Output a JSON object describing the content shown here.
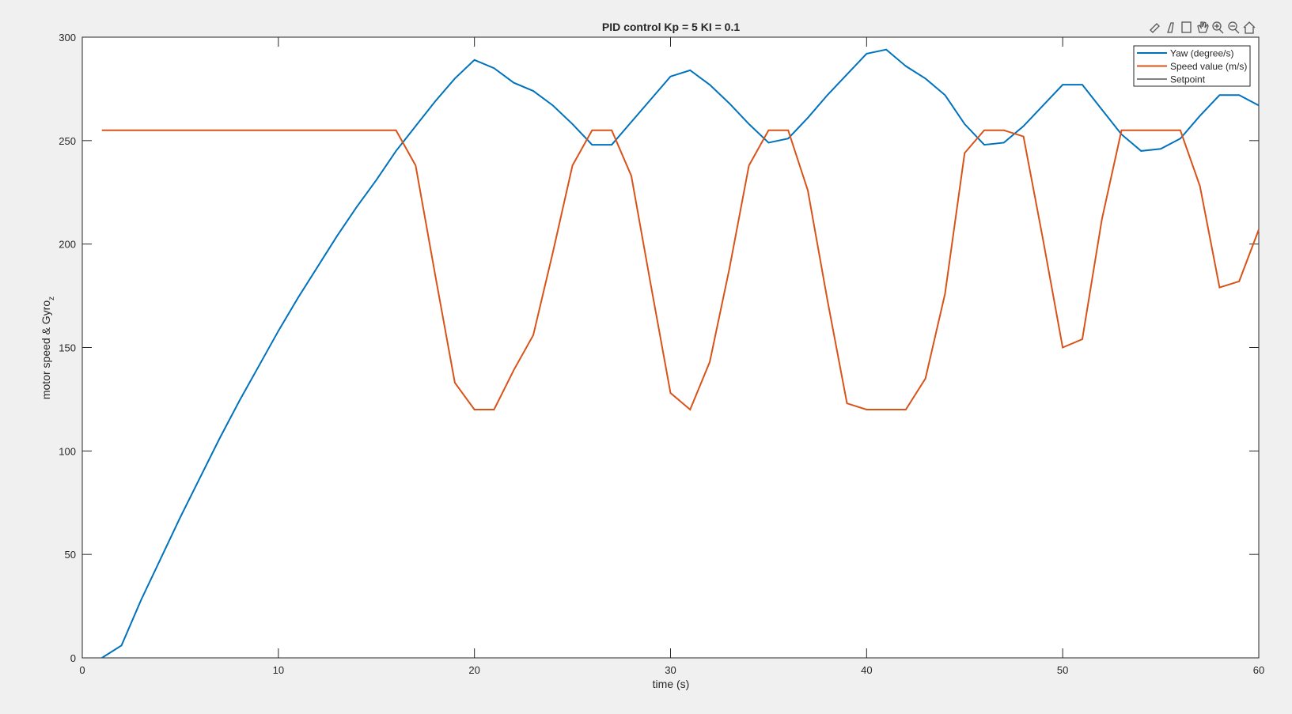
{
  "chart_data": {
    "type": "line",
    "title": "PID control Kp = 5 KI = 0.1",
    "xlabel": "time (s)",
    "ylabel": "motor speed & Gyro",
    "ylabel_subscript": "z",
    "x": [
      1,
      2,
      3,
      4,
      5,
      6,
      7,
      8,
      9,
      10,
      11,
      12,
      13,
      14,
      15,
      16,
      17,
      18,
      19,
      20,
      21,
      22,
      23,
      24,
      25,
      26,
      27,
      28,
      29,
      30,
      31,
      32,
      33,
      34,
      35,
      36,
      37,
      38,
      39,
      40,
      41,
      42,
      43,
      44,
      45,
      46,
      47,
      48,
      49,
      50,
      51,
      52,
      53,
      54,
      55,
      56,
      57,
      58,
      59,
      60
    ],
    "series": [
      {
        "name": "Yaw (degree/s)",
        "color": "#0072bd",
        "values": [
          0,
          6,
          28,
          48,
          68,
          87,
          106,
          124,
          141,
          158,
          174,
          189,
          204,
          218,
          231,
          245,
          257,
          269,
          280,
          289,
          285,
          278,
          274,
          267,
          258,
          248,
          248,
          259,
          270,
          281,
          284,
          277,
          268,
          258,
          249,
          251,
          261,
          272,
          282,
          292,
          294,
          286,
          280,
          272,
          258,
          248,
          249,
          257,
          267,
          277,
          277,
          265,
          253,
          245,
          246,
          251,
          262,
          272,
          272,
          267
        ]
      },
      {
        "name": "Speed value (m/s)",
        "color": "#d95319",
        "values": [
          255,
          255,
          255,
          255,
          255,
          255,
          255,
          255,
          255,
          255,
          255,
          255,
          255,
          255,
          255,
          255,
          238,
          185,
          133,
          120,
          120,
          139,
          156,
          196,
          238,
          255,
          255,
          233,
          180,
          128,
          120,
          143,
          188,
          238,
          255,
          255,
          226,
          173,
          123,
          120,
          120,
          120,
          135,
          176,
          244,
          255,
          255,
          252,
          202,
          150,
          154,
          212,
          255,
          255,
          255,
          255,
          228,
          179,
          182,
          207
        ]
      },
      {
        "name": "Setpoint",
        "color": "#000000",
        "values": [
          null,
          null,
          null,
          null,
          null,
          null,
          null,
          null,
          null,
          null,
          null,
          null,
          null,
          null,
          null,
          null,
          null,
          null,
          null,
          null,
          null,
          null,
          null,
          null,
          null,
          null,
          null,
          null,
          null,
          null,
          null,
          null,
          null,
          null,
          null,
          null,
          null,
          null,
          null,
          null,
          null,
          null,
          null,
          null,
          null,
          null,
          null,
          null,
          null,
          null,
          null,
          null,
          null,
          null,
          null,
          null,
          null,
          null,
          null,
          null
        ]
      }
    ],
    "xlim": [
      0,
      60
    ],
    "xticks": [
      0,
      10,
      20,
      30,
      40,
      50,
      60
    ],
    "ylim": [
      0,
      300
    ],
    "yticks": [
      0,
      50,
      100,
      150,
      200,
      250,
      300
    ],
    "legend": "top-right",
    "grid": false
  }
}
